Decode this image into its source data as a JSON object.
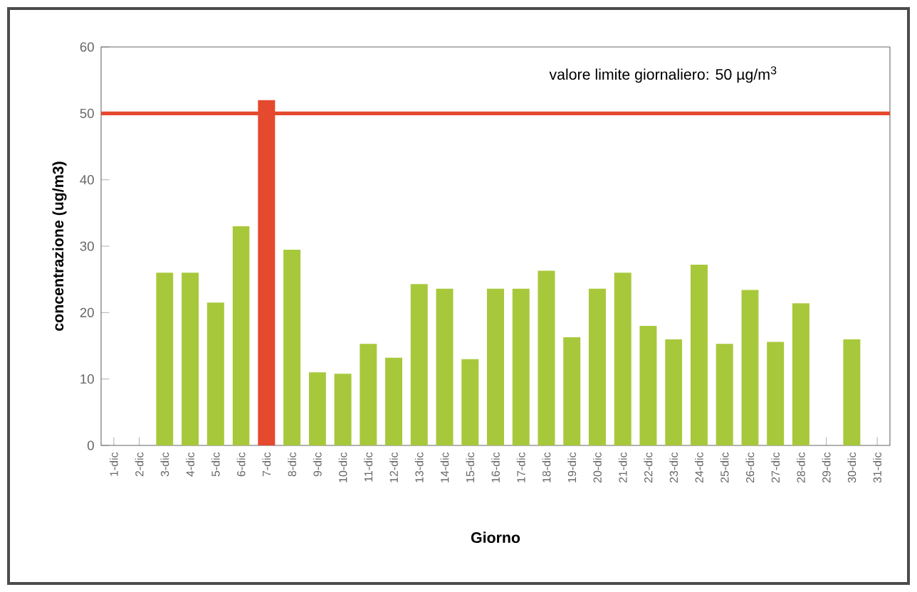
{
  "chart_data": {
    "type": "bar",
    "xlabel": "Giorno",
    "ylabel": "concentrazione (ug/m3)",
    "categories": [
      "1-dic",
      "2-dic",
      "3-dic",
      "4-dic",
      "5-dic",
      "6-dic",
      "7-dic",
      "8-dic",
      "9-dic",
      "10-dic",
      "11-dic",
      "12-dic",
      "13-dic",
      "14-dic",
      "15-dic",
      "16-dic",
      "17-dic",
      "18-dic",
      "19-dic",
      "20-dic",
      "21-dic",
      "22-dic",
      "23-dic",
      "24-dic",
      "25-dic",
      "26-dic",
      "27-dic",
      "28-dic",
      "29-dic",
      "30-dic",
      "31-dic"
    ],
    "values": [
      null,
      null,
      26,
      26,
      21.5,
      33,
      52,
      29.5,
      11,
      10.8,
      15.3,
      13.2,
      24.3,
      23.6,
      13,
      23.6,
      23.6,
      26.3,
      16.3,
      23.6,
      26,
      18,
      16,
      27.2,
      15.3,
      23.4,
      15.6,
      21.4,
      null,
      16,
      null
    ],
    "colors": [
      "#a8c83c",
      "#a8c83c",
      "#a8c83c",
      "#a8c83c",
      "#a8c83c",
      "#a8c83c",
      "#e5492e",
      "#a8c83c",
      "#a8c83c",
      "#a8c83c",
      "#a8c83c",
      "#a8c83c",
      "#a8c83c",
      "#a8c83c",
      "#a8c83c",
      "#a8c83c",
      "#a8c83c",
      "#a8c83c",
      "#a8c83c",
      "#a8c83c",
      "#a8c83c",
      "#a8c83c",
      "#a8c83c",
      "#a8c83c",
      "#a8c83c",
      "#a8c83c",
      "#a8c83c",
      "#a8c83c",
      "#a8c83c",
      "#a8c83c",
      "#a8c83c"
    ],
    "ylim": [
      0,
      60
    ],
    "yticks": [
      0,
      10,
      20,
      30,
      40,
      50,
      60
    ],
    "ref_lines": [
      {
        "axis": "y",
        "value": 50,
        "label": "valore limite giornaliero: 50 µg/m$^{3}$",
        "color": "#e5492e"
      }
    ],
    "grid": false
  }
}
